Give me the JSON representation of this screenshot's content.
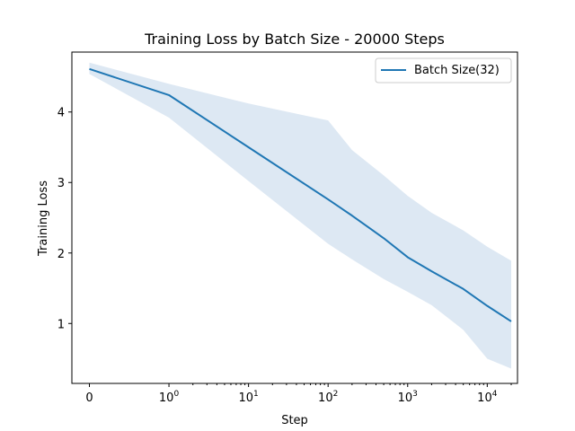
{
  "chart_data": {
    "type": "line",
    "title": "Training Loss by Batch Size - 20000 Steps",
    "xlabel": "Step",
    "ylabel": "Training Loss",
    "xscale": "symlog",
    "xlim": [
      -0.22,
      24000
    ],
    "ylim": [
      0.15,
      4.85
    ],
    "xticks": [
      {
        "value": 0,
        "base": "0",
        "exp": ""
      },
      {
        "value": 1,
        "base": "10",
        "exp": "0"
      },
      {
        "value": 10,
        "base": "10",
        "exp": "1"
      },
      {
        "value": 100,
        "base": "10",
        "exp": "2"
      },
      {
        "value": 1000,
        "base": "10",
        "exp": "3"
      },
      {
        "value": 10000,
        "base": "10",
        "exp": "4"
      }
    ],
    "yticks": [
      {
        "value": 1,
        "label": "1"
      },
      {
        "value": 2,
        "label": "2"
      },
      {
        "value": 3,
        "label": "3"
      },
      {
        "value": 4,
        "label": "4"
      }
    ],
    "legend_position": "top-right",
    "grid": false,
    "series": [
      {
        "name": "Batch Size(32)",
        "color": "#1f77b4",
        "x": [
          0,
          1,
          10,
          100,
          200,
          500,
          1000,
          2000,
          5000,
          10000,
          20000
        ],
        "y": [
          4.61,
          4.24,
          3.5,
          2.76,
          2.53,
          2.21,
          1.94,
          1.74,
          1.49,
          1.25,
          1.03
        ],
        "lower": [
          4.54,
          3.92,
          3.02,
          2.13,
          1.91,
          1.63,
          1.45,
          1.26,
          0.91,
          0.5,
          0.36
        ],
        "upper": [
          4.7,
          4.4,
          4.12,
          3.88,
          3.46,
          3.1,
          2.81,
          2.57,
          2.32,
          2.09,
          1.89
        ],
        "band_color": "#dde8f3"
      }
    ]
  }
}
